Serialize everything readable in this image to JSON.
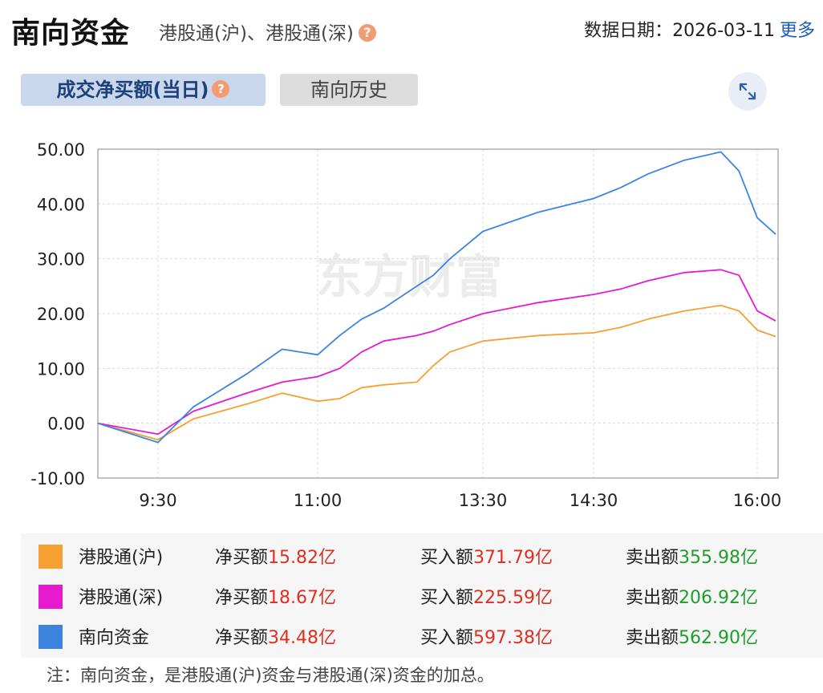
{
  "header": {
    "title": "南向资金",
    "subtitle": "港股通(沪)、港股通(深)",
    "date_label": "数据日期：2026-03-11",
    "more_label": "更多"
  },
  "tabs": {
    "active_label": "成交净买额(当日)",
    "inactive_label": "南向历史"
  },
  "icons": {
    "help": "question-circle-icon",
    "expand": "expand-arrows-icon"
  },
  "colors": {
    "hk_sh": "#f5a030",
    "hk_sz": "#e61ad0",
    "southbound": "#3d84de",
    "red_value": "#e02f20",
    "green_value": "#1e9e2d"
  },
  "chart_data": {
    "type": "line",
    "watermark": "东方财富",
    "yticks": [
      "50.00",
      "40.00",
      "30.00",
      "20.00",
      "10.00",
      "0.00",
      "-10.00"
    ],
    "ylim": [
      -10,
      50
    ],
    "xticks": [
      "9:30",
      "11:00",
      "13:30",
      "14:30",
      "16:00"
    ],
    "x": [
      "9:00",
      "9:30",
      "9:50",
      "10:20",
      "10:40",
      "11:00",
      "11:20",
      "11:40",
      "12:00",
      "12:30",
      "12:45",
      "13:00",
      "13:30",
      "14:00",
      "14:30",
      "14:45",
      "15:00",
      "15:20",
      "15:40",
      "15:50",
      "16:00",
      "16:10"
    ],
    "series": [
      {
        "name": "港股通(沪)",
        "color": "#f5a030",
        "values": [
          0.0,
          -3.0,
          0.8,
          3.5,
          5.5,
          4.0,
          4.5,
          6.5,
          7.0,
          7.5,
          10.5,
          13.0,
          15.0,
          16.0,
          16.5,
          17.5,
          19.0,
          20.5,
          21.5,
          20.5,
          17.0,
          15.82
        ]
      },
      {
        "name": "港股通(深)",
        "color": "#e61ad0",
        "values": [
          0.0,
          -2.0,
          2.2,
          5.5,
          7.5,
          8.5,
          10.0,
          13.0,
          15.0,
          16.0,
          16.8,
          18.0,
          20.0,
          22.0,
          23.5,
          24.5,
          26.0,
          27.5,
          28.0,
          27.0,
          20.5,
          18.67
        ]
      },
      {
        "name": "南向资金",
        "color": "#3d84de",
        "values": [
          0.0,
          -3.5,
          3.0,
          9.0,
          13.5,
          12.5,
          16.0,
          19.0,
          21.0,
          25.0,
          27.0,
          30.0,
          35.0,
          38.5,
          41.0,
          43.0,
          45.5,
          48.0,
          49.5,
          46.0,
          37.5,
          34.48
        ]
      }
    ]
  },
  "legend": [
    {
      "name": "港股通(沪)",
      "color": "#f5a030",
      "net_label": "净买额",
      "net_value": "15.82亿",
      "buy_label": "买入额",
      "buy_value": "371.79亿",
      "sell_label": "卖出额",
      "sell_value": "355.98亿"
    },
    {
      "name": "港股通(深)",
      "color": "#e61ad0",
      "net_label": "净买额",
      "net_value": "18.67亿",
      "buy_label": "买入额",
      "buy_value": "225.59亿",
      "sell_label": "卖出额",
      "sell_value": "206.92亿"
    },
    {
      "name": "南向资金",
      "color": "#3d84de",
      "net_label": "净买额",
      "net_value": "34.48亿",
      "buy_label": "买入额",
      "buy_value": "597.38亿",
      "sell_label": "卖出额",
      "sell_value": "562.90亿"
    }
  ],
  "footnote": "注：南向资金，是港股通(沪)资金与港股通(深)资金的加总。"
}
